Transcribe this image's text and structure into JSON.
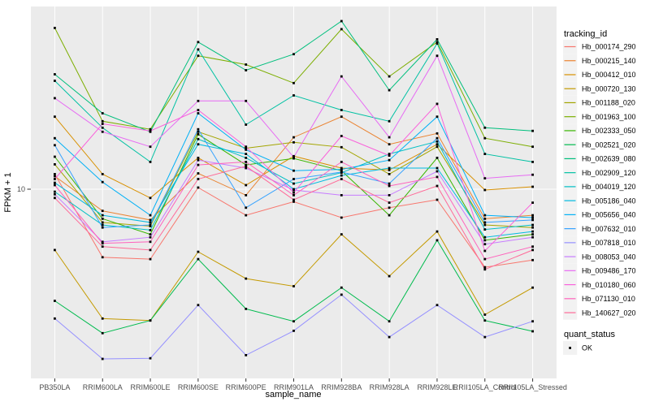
{
  "chart": {
    "y_axis": {
      "label": "FPKM + 1",
      "tick": "10"
    },
    "x_axis": {
      "label": "sample_name"
    },
    "legend": {
      "title": "tracking_id",
      "quant_title": "quant_status",
      "quant_ok_label": "OK"
    }
  },
  "colors": {
    "panel_bg": "#EBEBEB",
    "grid": "#FFFFFF",
    "legend_key_bg": "#F2F2F2",
    "marker": "#000000",
    "tick_text": "#4D4D4D",
    "axis_title_text": "#000000",
    "page_bg": "#FFFFFF"
  },
  "chart_data": {
    "type": "line",
    "title": "",
    "xlabel": "sample_name",
    "ylabel": "FPKM + 1",
    "y_scale": "log10",
    "ylim": [
      1.15,
      90
    ],
    "y_ticks": [
      10
    ],
    "legend_position": "right",
    "marker": "small black square (quant_status OK)",
    "grid": "white major gridlines on gray panel",
    "categories": [
      "PB350LA",
      "RRIM600LA",
      "RRIM600LE",
      "RRIM600SE",
      "RRIM600PE",
      "RRIM901LA",
      "RRIM928BA",
      "RRIM928LA",
      "RRIM928LE",
      "RRII105LA_Control",
      "RRII105LA_Stressed"
    ],
    "series": [
      {
        "name": "Hb_000174_290",
        "color": "#F8766D",
        "values": [
          12,
          4.4,
          4.3,
          10.2,
          7.3,
          8.6,
          7.1,
          8.0,
          8.8,
          3.9,
          4.25
        ]
      },
      {
        "name": "Hb_000215_140",
        "color": "#EA8331",
        "values": [
          11.7,
          7.7,
          6.9,
          12.1,
          9.3,
          18.7,
          24,
          17.2,
          19.6,
          7.0,
          7.3
        ]
      },
      {
        "name": "Hb_000412_010",
        "color": "#D89000",
        "values": [
          24,
          12,
          9.0,
          14.6,
          10.5,
          14.9,
          12.9,
          12.6,
          17.2,
          9.9,
          10.3
        ]
      },
      {
        "name": "Hb_000720_130",
        "color": "#C49A00",
        "values": [
          4.8,
          2.1,
          2.05,
          4.7,
          3.4,
          3.1,
          5.8,
          3.5,
          6.0,
          2.2,
          3.05
        ]
      },
      {
        "name": "Hb_001188_020",
        "color": "#A3A500",
        "values": [
          13.5,
          6.7,
          6.4,
          20,
          16.4,
          17.6,
          16.6,
          12.0,
          16.7,
          6.5,
          6.3
        ]
      },
      {
        "name": "Hb_001963_100",
        "color": "#7CAE00",
        "values": [
          70,
          22.7,
          20.6,
          50,
          45,
          36,
          69,
          39,
          59,
          18.5,
          16.7
        ]
      },
      {
        "name": "Hb_002333_050",
        "color": "#39B600",
        "values": [
          14.8,
          7.0,
          5.8,
          19.4,
          13.4,
          14.5,
          12.5,
          7.3,
          14.6,
          5.4,
          5.8
        ]
      },
      {
        "name": "Hb_002521_020",
        "color": "#00BB4E",
        "values": [
          2.6,
          1.76,
          2.05,
          4.3,
          2.36,
          2.03,
          3.05,
          2.03,
          5.4,
          2.05,
          1.8
        ]
      },
      {
        "name": "Hb_002639_080",
        "color": "#00BF7D",
        "values": [
          40,
          25,
          20,
          59,
          42,
          51,
          76,
          33,
          61,
          21,
          20.2
        ]
      },
      {
        "name": "Hb_002909_120",
        "color": "#00C1A3",
        "values": [
          37,
          21,
          13.9,
          54,
          21.8,
          31,
          26,
          22.7,
          58,
          15.3,
          13.9
        ]
      },
      {
        "name": "Hb_004019_120",
        "color": "#00BFC4",
        "values": [
          9.7,
          6.5,
          6.1,
          18.3,
          14.6,
          10.7,
          12.2,
          15.3,
          17.8,
          6.15,
          6.5
        ]
      },
      {
        "name": "Hb_005186_040",
        "color": "#00BAE0",
        "values": [
          10.8,
          7.3,
          6.7,
          17.2,
          15.3,
          10.0,
          11.8,
          12.9,
          12.9,
          5.6,
          6.0
        ]
      },
      {
        "name": "Hb_005656_040",
        "color": "#00B0F6",
        "values": [
          18.5,
          10.9,
          7.3,
          25,
          16.1,
          12.5,
          12.7,
          14.2,
          24,
          7.3,
          7.1
        ]
      },
      {
        "name": "Hb_007632_010",
        "color": "#35A2FF",
        "values": [
          17,
          6.3,
          6.5,
          20.6,
          8.0,
          11.3,
          12.3,
          10.7,
          18.5,
          6.7,
          6.9
        ]
      },
      {
        "name": "Hb_007818_010",
        "color": "#9590FF",
        "values": [
          2.1,
          1.29,
          1.3,
          2.47,
          1.35,
          1.81,
          2.8,
          1.68,
          2.47,
          1.68,
          2.03
        ]
      },
      {
        "name": "Hb_008053_040",
        "color": "#C77CFF",
        "values": [
          9.4,
          5.3,
          5.6,
          14.2,
          12.9,
          9.9,
          9.3,
          9.3,
          12.4,
          5.15,
          5.6
        ]
      },
      {
        "name": "Hb_009486_170",
        "color": "#E76BF3",
        "values": [
          30,
          20,
          16.7,
          29,
          29,
          14.7,
          39,
          18.7,
          50,
          11.4,
          11.9
        ]
      },
      {
        "name": "Hb_010180_060",
        "color": "#FA62DB",
        "values": [
          11.3,
          22,
          20.2,
          26,
          16.7,
          9.6,
          19,
          15.0,
          28,
          4.75,
          8.5
        ]
      },
      {
        "name": "Hb_071130_010",
        "color": "#FF62BC",
        "values": [
          10.5,
          5.2,
          5.3,
          13.4,
          13.9,
          9.3,
          13.9,
          10.4,
          11.6,
          4.3,
          5.0
        ]
      },
      {
        "name": "Hb_140627_020",
        "color": "#FF6A98",
        "values": [
          9.0,
          5.0,
          4.8,
          11.3,
          13.2,
          8.8,
          11.3,
          8.5,
          10.4,
          3.8,
          4.8
        ]
      }
    ],
    "quant_status": "OK"
  }
}
